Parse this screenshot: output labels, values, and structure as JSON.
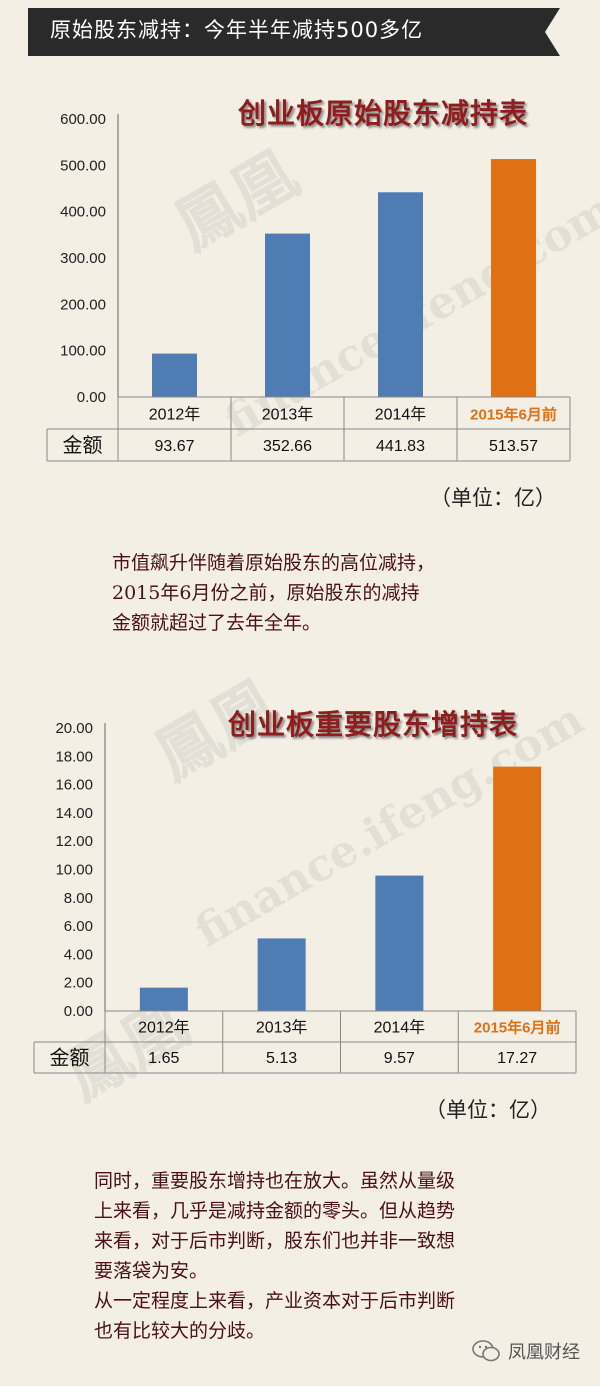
{
  "header": {
    "title": "原始股东减持：今年半年减持500多亿"
  },
  "colors": {
    "bar": "#4f7cb3",
    "highlight": "#e07014",
    "title": "#8f1d1d",
    "banner": "#2a2a2a"
  },
  "chart_data": [
    {
      "type": "bar",
      "title": "创业板原始股东减持表",
      "categories": [
        "2012年",
        "2013年",
        "2014年",
        "2015年6月前"
      ],
      "values": [
        93.67,
        352.66,
        441.83,
        513.57
      ],
      "value_labels": [
        "93.67",
        "352.66",
        "441.83",
        "513.57"
      ],
      "row_label": "金额",
      "ylim": [
        0,
        600
      ],
      "yticks": [
        "0.00",
        "100.00",
        "200.00",
        "300.00",
        "400.00",
        "500.00",
        "600.00"
      ],
      "highlight_index": 3,
      "unit": "（单位：亿）"
    },
    {
      "type": "bar",
      "title": "创业板重要股东增持表",
      "categories": [
        "2012年",
        "2013年",
        "2014年",
        "2015年6月前"
      ],
      "values": [
        1.65,
        5.13,
        9.57,
        17.27
      ],
      "value_labels": [
        "1.65",
        "5.13",
        "9.57",
        "17.27"
      ],
      "row_label": "金额",
      "ylim": [
        0,
        20
      ],
      "yticks": [
        "0.00",
        "2.00",
        "4.00",
        "6.00",
        "8.00",
        "10.00",
        "12.00",
        "14.00",
        "16.00",
        "18.00",
        "20.00"
      ],
      "highlight_index": 3,
      "unit": "（单位：亿）"
    }
  ],
  "paragraph1": [
    "市值飙升伴随着原始股东的高位减持，",
    "2015年6月份之前，原始股东的减持",
    "金额就超过了去年全年。"
  ],
  "paragraph2": [
    "同时，重要股东增持也在放大。虽然从量级",
    "上来看，几乎是减持金额的零头。但从趋势",
    "来看，对于后市判断，股东们也并非一致想",
    "要落袋为安。",
    "从一定程度上来看，产业资本对于后市判断",
    "也有比较大的分歧。"
  ],
  "footer": {
    "brand": "凤凰财经",
    "icon": "wechat-icon"
  }
}
